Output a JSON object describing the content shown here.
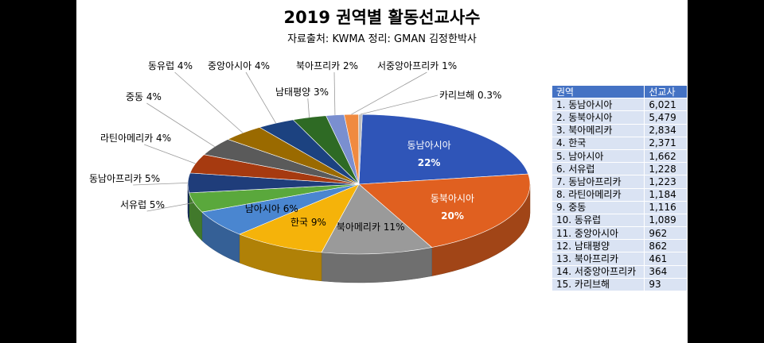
{
  "title": "2019 권역별 활동선교사수",
  "subtitle": "자료출처: KWMA  정리: GMAN 김정한박사",
  "chart_data": {
    "type": "pie",
    "title": "2019 권역별 활동선교사수",
    "subtitle": "자료출처: KWMA  정리: GMAN 김정한박사",
    "slices": [
      {
        "label": "동남아시아",
        "percent": "22%",
        "value": 6021,
        "color": "#2f55b8",
        "label_inside": true
      },
      {
        "label": "동북아시아",
        "percent": "20%",
        "value": 5479,
        "color": "#e06020",
        "label_inside": true
      },
      {
        "label": "북아메리카",
        "percent": "11%",
        "value": 2834,
        "color": "#9a9a9a",
        "label_inside": true
      },
      {
        "label": "한국",
        "percent": "9%",
        "value": 2371,
        "color": "#f5b30a",
        "label_inside": true
      },
      {
        "label": "남아시아",
        "percent": "6%",
        "value": 1662,
        "color": "#4a86d0",
        "label_inside": true
      },
      {
        "label": "서유럽",
        "percent": "5%",
        "value": 1228,
        "color": "#5aa83c",
        "label_inside": false
      },
      {
        "label": "동남아프리카",
        "percent": "5%",
        "value": 1223,
        "color": "#1f3d7a",
        "label_inside": false
      },
      {
        "label": "라틴아메리카",
        "percent": "4%",
        "value": 1184,
        "color": "#a63a10",
        "label_inside": false
      },
      {
        "label": "중동",
        "percent": "4%",
        "value": 1116,
        "color": "#5a5a5a",
        "label_inside": false
      },
      {
        "label": "동유럽",
        "percent": "4%",
        "value": 1089,
        "color": "#9a6a00",
        "label_inside": false
      },
      {
        "label": "중앙아시아",
        "percent": "4%",
        "value": 962,
        "color": "#1c4280",
        "label_inside": false
      },
      {
        "label": "남태평양",
        "percent": "3%",
        "value": 862,
        "color": "#2e6a24",
        "label_inside": false
      },
      {
        "label": "북아프리카",
        "percent": "2%",
        "value": 461,
        "color": "#7a8fd0",
        "label_inside": false
      },
      {
        "label": "서중앙아프리카",
        "percent": "1%",
        "value": 364,
        "color": "#f08a40",
        "label_inside": false
      },
      {
        "label": "카리브해",
        "percent": "0.3%",
        "value": 93,
        "color": "#bfbfbf",
        "label_inside": false
      }
    ]
  },
  "table": {
    "headers": [
      "권역",
      "선교사"
    ],
    "rows": [
      [
        "1. 동남아시아",
        "6,021"
      ],
      [
        "2. 동북아시아",
        "5,479"
      ],
      [
        "3. 북아메리카",
        "2,834"
      ],
      [
        "4. 한국",
        "2,371"
      ],
      [
        "5. 남아시아",
        "1,662"
      ],
      [
        "6. 서유럽",
        "1,228"
      ],
      [
        "7. 동남아프리카",
        "1,223"
      ],
      [
        "8. 라틴아메리카",
        "1,184"
      ],
      [
        "9. 중동",
        "1,116"
      ],
      [
        "10. 동유럽",
        "1,089"
      ],
      [
        "11. 중앙아시아",
        "962"
      ],
      [
        "12. 남태평양",
        "862"
      ],
      [
        "13. 북아프리카",
        "461"
      ],
      [
        "14. 서중앙아프리카",
        "364"
      ],
      [
        "15. 카리브해",
        "93"
      ]
    ]
  }
}
